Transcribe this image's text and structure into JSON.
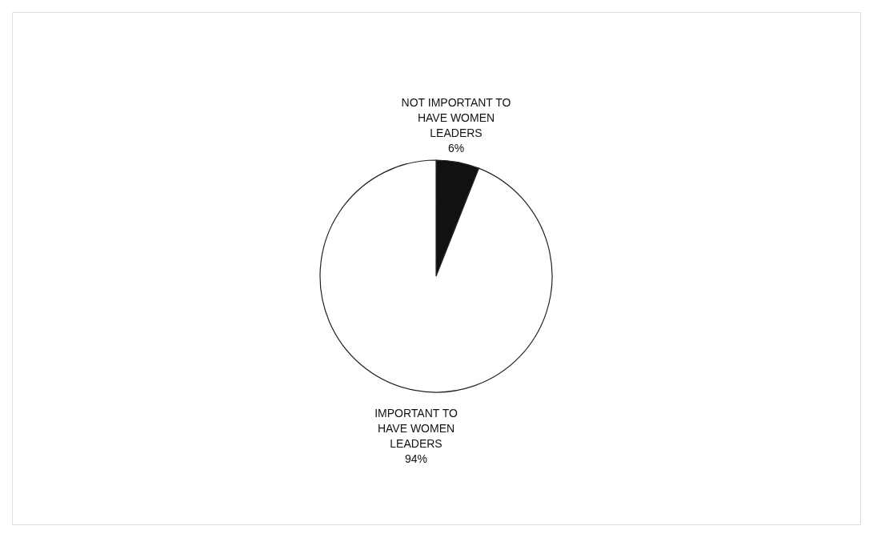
{
  "chart_data": {
    "type": "pie",
    "categories": [
      "NOT IMPORTANT TO\nHAVE WOMEN\nLEADERS",
      "IMPORTANT TO\nHAVE WOMEN\nLEADERS"
    ],
    "values": [
      6,
      94
    ],
    "colors": [
      "#111111",
      "#ffffff"
    ],
    "value_labels": [
      "6%",
      "94%"
    ],
    "legend": false
  }
}
